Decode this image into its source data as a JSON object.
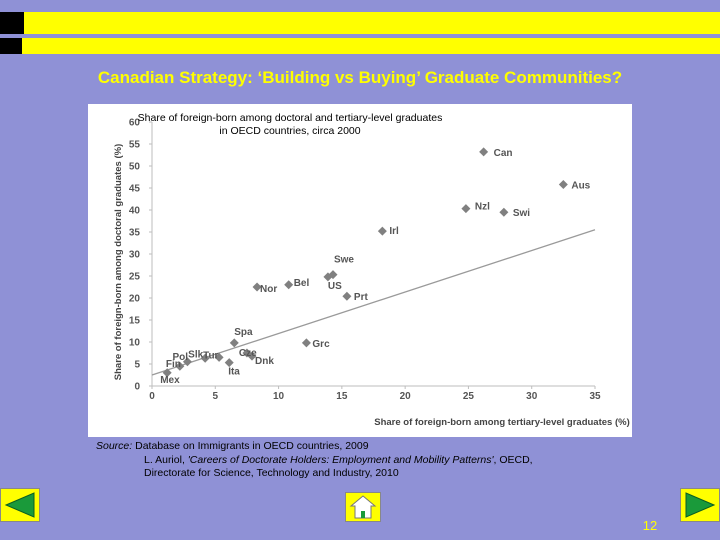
{
  "slide": {
    "title": "Canadian Strategy: ‘Building vs Buying’ Graduate Communities?",
    "page_number": "12",
    "colors": {
      "background": "#8f91d6",
      "accent": "#ffff00"
    }
  },
  "source": {
    "label": "Source:",
    "line1": "Database on Immigrants in OECD countries, 2009",
    "line2_prefix": "L. Auriol, ",
    "line2_title": "'Careers of Doctorate Holders: Employment and Mobility Patterns'",
    "line2_suffix": ", OECD,",
    "line3": "Directorate for Science, Technology and Industry, 2010"
  },
  "navigation": {
    "prev_icon": "arrow-left-icon",
    "next_icon": "arrow-right-icon",
    "home_icon": "home-icon"
  },
  "chart_data": {
    "type": "scatter",
    "title_line1": "Share of foreign-born among doctoral and tertiary-level graduates",
    "title_line2": "in OECD countries, circa 2000",
    "xlabel": "Share of foreign-born among tertiary-level graduates (%)",
    "ylabel": "Share of foreign-born among doctoral graduates (%)",
    "xlim": [
      0,
      35
    ],
    "ylim": [
      0,
      60
    ],
    "xticks": [
      0,
      5,
      10,
      15,
      20,
      25,
      30,
      35
    ],
    "yticks": [
      0,
      5,
      10,
      15,
      20,
      25,
      30,
      35,
      40,
      45,
      50,
      55,
      60
    ],
    "grid": false,
    "marker_color": "#808080",
    "trendline": {
      "x": [
        0,
        35
      ],
      "y": [
        2.5,
        35.5
      ]
    },
    "points": [
      {
        "label": "Can",
        "x": 26.2,
        "y": 53.2
      },
      {
        "label": "Aus",
        "x": 32.5,
        "y": 45.8
      },
      {
        "label": "Nzl",
        "x": 24.8,
        "y": 40.3
      },
      {
        "label": "Swi",
        "x": 27.8,
        "y": 39.5
      },
      {
        "label": "Irl",
        "x": 18.2,
        "y": 35.2
      },
      {
        "label": "Swe",
        "x": 14.3,
        "y": 25.3
      },
      {
        "label": "US",
        "x": 13.9,
        "y": 24.8
      },
      {
        "label": "Bel",
        "x": 10.8,
        "y": 23.0
      },
      {
        "label": "Nor",
        "x": 8.3,
        "y": 22.5
      },
      {
        "label": "Prt",
        "x": 15.4,
        "y": 20.4
      },
      {
        "label": "Spa",
        "x": 6.5,
        "y": 9.8
      },
      {
        "label": "Cze",
        "x": 7.5,
        "y": 7.5
      },
      {
        "label": "Grc",
        "x": 12.2,
        "y": 9.8
      },
      {
        "label": "Tur",
        "x": 5.3,
        "y": 6.5
      },
      {
        "label": "Slk",
        "x": 4.2,
        "y": 6.3
      },
      {
        "label": "Dnk",
        "x": 7.9,
        "y": 6.8
      },
      {
        "label": "Pol",
        "x": 2.8,
        "y": 5.5
      },
      {
        "label": "Fin",
        "x": 2.2,
        "y": 4.5
      },
      {
        "label": "Ita",
        "x": 6.1,
        "y": 5.3
      },
      {
        "label": "Mex",
        "x": 1.2,
        "y": 3.0
      }
    ]
  }
}
